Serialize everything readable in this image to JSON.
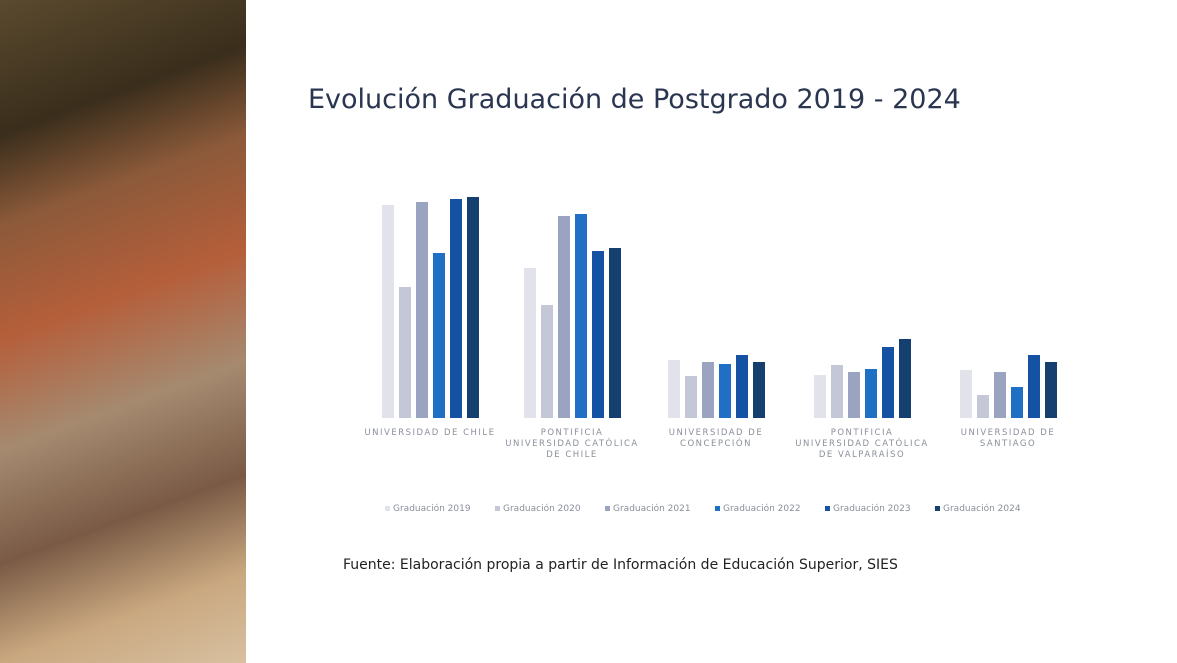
{
  "chart_data": {
    "type": "bar",
    "title": "Evolución Graduación de Postgrado 2019 - 2024",
    "categories": [
      "UNIVERSIDAD DE CHILE",
      "PONTIFICIA UNIVERSIDAD CATÓLICA DE CHILE",
      "UNIVERSIDAD DE CONCEPCIÓN",
      "PONTIFICIA UNIVERSIDAD CATÓLICA DE VALPARAÍSO",
      "UNIVERSIDAD DE SANTIAGO"
    ],
    "series": [
      {
        "name": "Graduación 2019",
        "color": "#e2e3ea",
        "values": [
          1491,
          1050,
          406,
          301,
          336
        ]
      },
      {
        "name": "Graduación 2020",
        "color": "#c4c8d6",
        "values": [
          917,
          791,
          294,
          371,
          161
        ]
      },
      {
        "name": "Graduación 2021",
        "color": "#9aa3c0",
        "values": [
          1512,
          1414,
          392,
          322,
          322
        ]
      },
      {
        "name": "Graduación 2022",
        "color": "#1f6fc5",
        "values": [
          1155,
          1428,
          378,
          343,
          217
        ]
      },
      {
        "name": "Graduación 2023",
        "color": "#1652a3",
        "values": [
          1533,
          1169,
          441,
          497,
          441
        ]
      },
      {
        "name": "Graduación 2024",
        "color": "#153f6e",
        "values": [
          1547,
          1190,
          392,
          553,
          392
        ]
      }
    ],
    "legend": "bottom",
    "source": "Fuente: Elaboración propia a partir de Información de Educación Superior, SIES"
  }
}
